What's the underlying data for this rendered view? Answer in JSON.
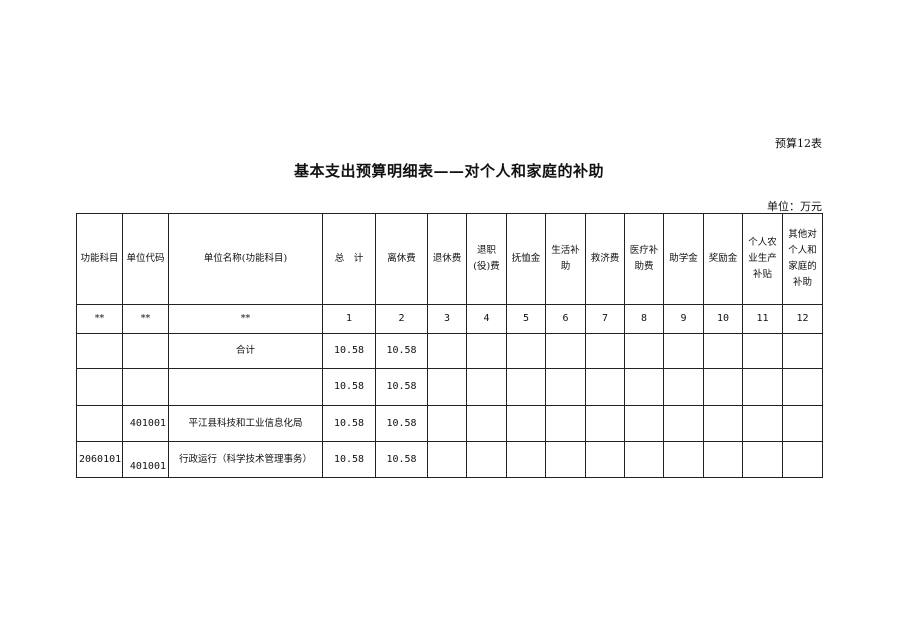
{
  "form_no": "预算12表",
  "title": "基本支出预算明细表——对个人和家庭的补助",
  "unit": "单位：万元",
  "headers": [
    "功能科目",
    "单位代码",
    "单位名称(功能科目)",
    "总　计",
    "离休费",
    "退休费",
    "退职(役)费",
    "抚恤金",
    "生活补助",
    "救济费",
    "医疗补助费",
    "助学金",
    "奖励金",
    "个人农业生产补贴",
    "其他对个人和家庭的补助"
  ],
  "index_row": [
    "**",
    "**",
    "**",
    "1",
    "2",
    "3",
    "4",
    "5",
    "6",
    "7",
    "8",
    "9",
    "10",
    "11",
    "12"
  ],
  "rows": [
    [
      "",
      "",
      "合计",
      "10.58",
      "10.58",
      "",
      "",
      "",
      "",
      "",
      "",
      "",
      "",
      "",
      ""
    ],
    [
      "",
      "",
      "",
      "10.58",
      "10.58",
      "",
      "",
      "",
      "",
      "",
      "",
      "",
      "",
      "",
      ""
    ],
    [
      "",
      "401001",
      "平江县科技和工业信息化局",
      "10.58",
      "10.58",
      "",
      "",
      "",
      "",
      "",
      "",
      "",
      "",
      "",
      ""
    ],
    [
      "2060101",
      "401001",
      "行政运行（科学技术管理事务）",
      "10.58",
      "10.58",
      "",
      "",
      "",
      "",
      "",
      "",
      "",
      "",
      "",
      ""
    ]
  ]
}
